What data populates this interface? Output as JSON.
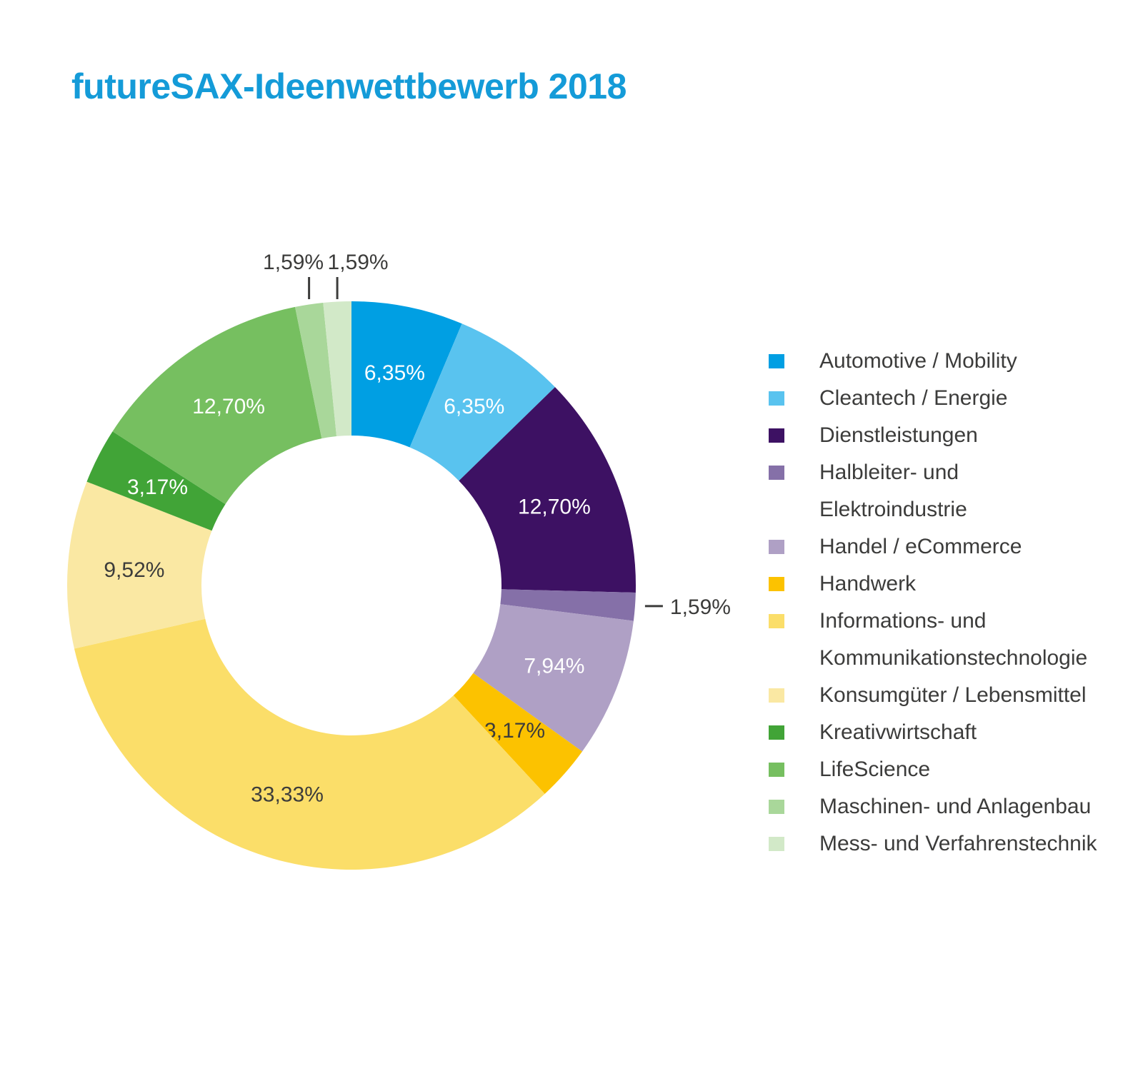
{
  "title": "futureSAX-Ideenwettbewerb 2018",
  "colors": {
    "title": "#149BD8",
    "text_dark": "#3C3C3B",
    "label_light": "#FFFFFF",
    "background": "#FFFFFF"
  },
  "chart_data": {
    "type": "pie",
    "subtype": "donut",
    "title": "futureSAX-Ideenwettbewerb 2018",
    "unit": "percent",
    "direction": "clockwise",
    "start_angle": "12-o-clock",
    "inner_radius_ratio": 0.53,
    "legend_position": "right",
    "slices": [
      {
        "label": "Automotive / Mobility",
        "value": 6.35,
        "display": "6,35%",
        "color": "#009FE3",
        "label_style": "inside-light"
      },
      {
        "label": "Cleantech / Energie",
        "value": 6.35,
        "display": "6,35%",
        "color": "#59C3EF",
        "label_style": "inside-light"
      },
      {
        "label": "Dienstleistungen",
        "value": 12.7,
        "display": "12,70%",
        "color": "#3D1163",
        "label_style": "inside-light"
      },
      {
        "label": "Halbleiter- und Elektroindustrie",
        "value": 1.59,
        "display": "1,59%",
        "color": "#8570A8",
        "label_style": "callout-right"
      },
      {
        "label": "Handel / eCommerce",
        "value": 7.94,
        "display": "7,94%",
        "color": "#AFA0C5",
        "label_style": "inside-light"
      },
      {
        "label": "Handwerk",
        "value": 3.17,
        "display": "3,17%",
        "color": "#FCC200",
        "label_style": "inside-dark"
      },
      {
        "label": "Informations- und Kommunikationstechnologie",
        "value": 33.33,
        "display": "33,33%",
        "color": "#FBDE69",
        "label_style": "inside-dark"
      },
      {
        "label": "Konsumgüter / Lebensmittel",
        "value": 9.52,
        "display": "9,52%",
        "color": "#FAE8A3",
        "label_style": "inside-dark"
      },
      {
        "label": "Kreativwirtschaft",
        "value": 3.17,
        "display": "3,17%",
        "color": "#41A437",
        "label_style": "inside-light"
      },
      {
        "label": "LifeScience",
        "value": 12.7,
        "display": "12,70%",
        "color": "#76BF60",
        "label_style": "inside-light"
      },
      {
        "label": "Maschinen- und Anlagenbau",
        "value": 1.59,
        "display": "1,59%",
        "color": "#A9D79A",
        "label_style": "callout-top"
      },
      {
        "label": "Mess- und Verfahrenstechnik",
        "value": 1.59,
        "display": "1,59%",
        "color": "#D2E9C8",
        "label_style": "callout-top"
      }
    ]
  }
}
